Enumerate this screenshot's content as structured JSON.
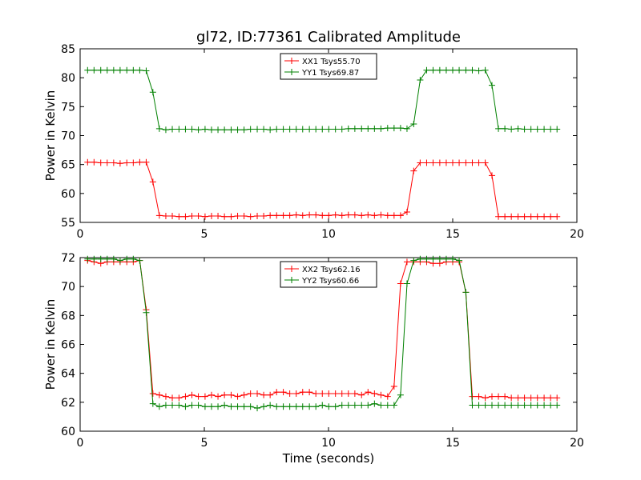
{
  "figure": {
    "title": "gl72, ID:77361 Calibrated Amplitude",
    "xlabel": "Time (seconds)"
  },
  "chart_data": [
    {
      "type": "line",
      "ylabel": "Power in Kelvin",
      "xlim": [
        0,
        20
      ],
      "ylim": [
        55,
        85
      ],
      "xticks": [
        0,
        5,
        10,
        15,
        20
      ],
      "yticks": [
        55,
        60,
        65,
        70,
        75,
        80,
        85
      ],
      "legend_position": "top-center",
      "grid": false,
      "x": [
        0.3,
        0.56,
        0.83,
        1.09,
        1.35,
        1.61,
        1.88,
        2.14,
        2.4,
        2.66,
        2.93,
        3.19,
        3.45,
        3.71,
        3.98,
        4.24,
        4.5,
        4.76,
        5.03,
        5.29,
        5.55,
        5.81,
        6.08,
        6.34,
        6.6,
        6.86,
        7.13,
        7.39,
        7.65,
        7.91,
        8.18,
        8.44,
        8.7,
        8.96,
        9.23,
        9.49,
        9.75,
        10.01,
        10.28,
        10.54,
        10.8,
        11.06,
        11.33,
        11.59,
        11.85,
        12.11,
        12.38,
        12.64,
        12.9,
        13.16,
        13.43,
        13.69,
        13.95,
        14.21,
        14.48,
        14.74,
        15.0,
        15.26,
        15.53,
        15.79,
        16.05,
        16.31,
        16.58,
        16.84,
        17.1,
        17.36,
        17.63,
        17.89,
        18.15,
        18.41,
        18.68,
        18.94,
        19.2
      ],
      "series": [
        {
          "name": "XX1 Tsys55.70",
          "color": "#ff0000",
          "values": [
            65.4,
            65.4,
            65.3,
            65.3,
            65.3,
            65.2,
            65.3,
            65.3,
            65.4,
            65.4,
            62.0,
            56.2,
            56.1,
            56.1,
            56.0,
            56.0,
            56.1,
            56.1,
            56.0,
            56.1,
            56.1,
            56.0,
            56.0,
            56.1,
            56.1,
            56.0,
            56.1,
            56.1,
            56.2,
            56.2,
            56.2,
            56.2,
            56.3,
            56.2,
            56.3,
            56.3,
            56.2,
            56.2,
            56.3,
            56.2,
            56.3,
            56.3,
            56.2,
            56.3,
            56.2,
            56.3,
            56.2,
            56.2,
            56.2,
            56.8,
            63.9,
            65.3,
            65.3,
            65.3,
            65.3,
            65.3,
            65.3,
            65.3,
            65.3,
            65.3,
            65.3,
            65.3,
            63.1,
            56.0,
            56.0,
            56.0,
            56.0,
            56.0,
            56.0,
            56.0,
            56.0,
            56.0,
            56.0
          ]
        },
        {
          "name": "YY1 Tsys69.87",
          "color": "#008000",
          "values": [
            81.3,
            81.3,
            81.3,
            81.3,
            81.3,
            81.3,
            81.3,
            81.3,
            81.3,
            81.2,
            77.5,
            71.2,
            71.0,
            71.1,
            71.1,
            71.1,
            71.1,
            71.0,
            71.1,
            71.0,
            71.0,
            71.0,
            71.0,
            71.0,
            71.0,
            71.1,
            71.1,
            71.1,
            71.0,
            71.1,
            71.1,
            71.1,
            71.1,
            71.1,
            71.1,
            71.1,
            71.1,
            71.1,
            71.1,
            71.1,
            71.2,
            71.2,
            71.2,
            71.2,
            71.2,
            71.2,
            71.3,
            71.3,
            71.3,
            71.2,
            72.0,
            79.6,
            81.3,
            81.3,
            81.3,
            81.3,
            81.3,
            81.3,
            81.3,
            81.3,
            81.2,
            81.3,
            78.7,
            71.2,
            71.2,
            71.1,
            71.2,
            71.1,
            71.1,
            71.1,
            71.1,
            71.1,
            71.1
          ]
        }
      ]
    },
    {
      "type": "line",
      "ylabel": "Power in Kelvin",
      "xlabel": "Time (seconds)",
      "xlim": [
        0,
        20
      ],
      "ylim": [
        60,
        72
      ],
      "xticks": [
        0,
        5,
        10,
        15,
        20
      ],
      "yticks": [
        60,
        62,
        64,
        66,
        68,
        70,
        72
      ],
      "legend_position": "top-center",
      "grid": false,
      "x": [
        0.3,
        0.56,
        0.83,
        1.09,
        1.35,
        1.61,
        1.88,
        2.14,
        2.4,
        2.66,
        2.93,
        3.19,
        3.45,
        3.71,
        3.98,
        4.24,
        4.5,
        4.76,
        5.03,
        5.29,
        5.55,
        5.81,
        6.08,
        6.34,
        6.6,
        6.86,
        7.13,
        7.39,
        7.65,
        7.91,
        8.18,
        8.44,
        8.7,
        8.96,
        9.23,
        9.49,
        9.75,
        10.01,
        10.28,
        10.54,
        10.8,
        11.06,
        11.33,
        11.59,
        11.85,
        12.11,
        12.38,
        12.64,
        12.9,
        13.16,
        13.43,
        13.69,
        13.95,
        14.21,
        14.48,
        14.74,
        15.0,
        15.26,
        15.53,
        15.79,
        16.05,
        16.31,
        16.58,
        16.84,
        17.1,
        17.36,
        17.63,
        17.89,
        18.15,
        18.41,
        18.68,
        18.94,
        19.2
      ],
      "series": [
        {
          "name": "XX2 Tsys62.16",
          "color": "#ff0000",
          "values": [
            71.8,
            71.7,
            71.6,
            71.7,
            71.7,
            71.7,
            71.7,
            71.7,
            71.8,
            68.4,
            62.6,
            62.5,
            62.4,
            62.3,
            62.3,
            62.4,
            62.5,
            62.4,
            62.4,
            62.5,
            62.4,
            62.5,
            62.5,
            62.4,
            62.5,
            62.6,
            62.6,
            62.5,
            62.5,
            62.7,
            62.7,
            62.6,
            62.6,
            62.7,
            62.7,
            62.6,
            62.6,
            62.6,
            62.6,
            62.6,
            62.6,
            62.6,
            62.5,
            62.7,
            62.6,
            62.5,
            62.4,
            63.1,
            70.2,
            71.7,
            71.7,
            71.7,
            71.7,
            71.6,
            71.6,
            71.7,
            71.7,
            71.7,
            69.6,
            62.4,
            62.4,
            62.3,
            62.4,
            62.4,
            62.4,
            62.3,
            62.3,
            62.3,
            62.3,
            62.3,
            62.3,
            62.3,
            62.3
          ]
        },
        {
          "name": "YY2 Tsys60.66",
          "color": "#008000",
          "values": [
            71.9,
            71.9,
            71.9,
            71.9,
            71.9,
            71.8,
            71.9,
            71.9,
            71.8,
            68.2,
            61.9,
            61.7,
            61.8,
            61.8,
            61.8,
            61.7,
            61.8,
            61.8,
            61.7,
            61.7,
            61.7,
            61.8,
            61.7,
            61.7,
            61.7,
            61.7,
            61.6,
            61.7,
            61.8,
            61.7,
            61.7,
            61.7,
            61.7,
            61.7,
            61.7,
            61.7,
            61.8,
            61.7,
            61.7,
            61.8,
            61.8,
            61.8,
            61.8,
            61.8,
            61.9,
            61.8,
            61.8,
            61.8,
            62.5,
            70.2,
            71.8,
            71.9,
            71.9,
            71.9,
            71.9,
            71.9,
            71.9,
            71.8,
            69.6,
            61.8,
            61.8,
            61.8,
            61.8,
            61.8,
            61.8,
            61.8,
            61.8,
            61.8,
            61.8,
            61.8,
            61.8,
            61.8,
            61.8
          ]
        }
      ]
    }
  ]
}
